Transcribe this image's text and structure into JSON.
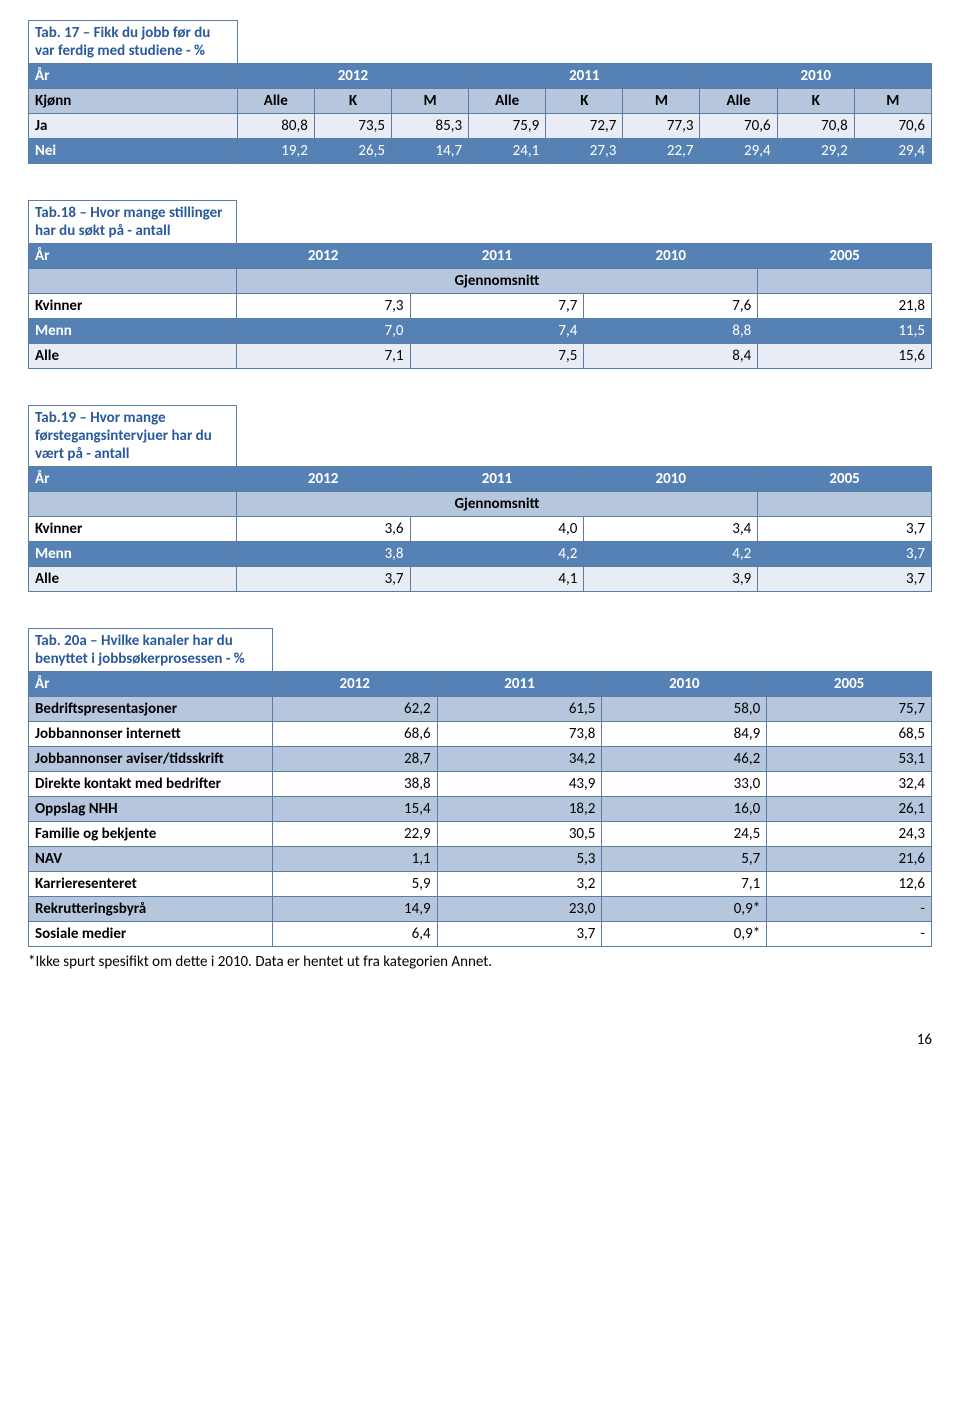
{
  "t17": {
    "title": "Tab. 17 – Fikk du jobb før du var ferdig med studiene - %",
    "year_label": "År",
    "years": [
      "2012",
      "2011",
      "2010"
    ],
    "sub_label": "Kjønn",
    "sub_cols": [
      "Alle",
      "K",
      "M",
      "Alle",
      "K",
      "M",
      "Alle",
      "K",
      "M"
    ],
    "rows": [
      {
        "label": "Ja",
        "cells": [
          "80,8",
          "73,5",
          "85,3",
          "75,9",
          "72,7",
          "77,3",
          "70,6",
          "70,8",
          "70,6"
        ],
        "cls": "row-light"
      },
      {
        "label": "Nei",
        "cells": [
          "19,2",
          "26,5",
          "14,7",
          "24,1",
          "27,3",
          "22,7",
          "29,4",
          "29,2",
          "29,4"
        ],
        "cls": "row-blue-dark"
      }
    ]
  },
  "t18": {
    "title": "Tab.18 – Hvor mange stillinger har du søkt på - antall",
    "year_label": "År",
    "years": [
      "2012",
      "2011",
      "2010",
      "2005"
    ],
    "mid_label": "Gjennomsnitt",
    "rows": [
      {
        "label": "Kvinner",
        "cells": [
          "7,3",
          "7,7",
          "7,6",
          "21,8"
        ],
        "cls": "row-white"
      },
      {
        "label": "Menn",
        "cells": [
          "7,0",
          "7,4",
          "8,8",
          "11,5"
        ],
        "cls": "row-blue-dark"
      },
      {
        "label": "Alle",
        "cells": [
          "7,1",
          "7,5",
          "8,4",
          "15,6"
        ],
        "cls": "row-light"
      }
    ]
  },
  "t19": {
    "title": "Tab.19 – Hvor mange førstegangsintervjuer har du vært på - antall",
    "year_label": "År",
    "years": [
      "2012",
      "2011",
      "2010",
      "2005"
    ],
    "mid_label": "Gjennomsnitt",
    "rows": [
      {
        "label": "Kvinner",
        "cells": [
          "3,6",
          "4,0",
          "3,4",
          "3,7"
        ],
        "cls": "row-white"
      },
      {
        "label": "Menn",
        "cells": [
          "3,8",
          "4,2",
          "4,2",
          "3,7"
        ],
        "cls": "row-blue-dark"
      },
      {
        "label": "Alle",
        "cells": [
          "3,7",
          "4,1",
          "3,9",
          "3,7"
        ],
        "cls": "row-light"
      }
    ]
  },
  "t20": {
    "title": "Tab. 20a – Hvilke kanaler har du benyttet i jobbsøkerprosessen - %",
    "year_label": "År",
    "years": [
      "2012",
      "2011",
      "2010",
      "2005"
    ],
    "rows": [
      {
        "label": "Bedriftspresentasjoner",
        "cells": [
          "62,2",
          "61,5",
          "58,0",
          "75,7"
        ],
        "cls": "row-blue-med"
      },
      {
        "label": "Jobbannonser internett",
        "cells": [
          "68,6",
          "73,8",
          "84,9",
          "68,5"
        ],
        "cls": "row-white"
      },
      {
        "label": "Jobbannonser aviser/tidsskrift",
        "cells": [
          "28,7",
          "34,2",
          "46,2",
          "53,1"
        ],
        "cls": "row-blue-med"
      },
      {
        "label": "Direkte kontakt med bedrifter",
        "cells": [
          "38,8",
          "43,9",
          "33,0",
          "32,4"
        ],
        "cls": "row-white"
      },
      {
        "label": "Oppslag NHH",
        "cells": [
          "15,4",
          "18,2",
          "16,0",
          "26,1"
        ],
        "cls": "row-blue-med"
      },
      {
        "label": "Familie og bekjente",
        "cells": [
          "22,9",
          "30,5",
          "24,5",
          "24,3"
        ],
        "cls": "row-white"
      },
      {
        "label": "NAV",
        "cells": [
          "1,1",
          "5,3",
          "5,7",
          "21,6"
        ],
        "cls": "row-blue-med"
      },
      {
        "label": "Karrieresenteret",
        "cells": [
          "5,9",
          "3,2",
          "7,1",
          "12,6"
        ],
        "cls": "row-white"
      },
      {
        "label": "Rekrutteringsbyrå",
        "cells": [
          "14,9",
          "23,0",
          "0,9*",
          "-"
        ],
        "cls": "row-blue-med"
      },
      {
        "label": "Sosiale medier",
        "cells": [
          "6,4",
          "3,7",
          "0,9*",
          "-"
        ],
        "cls": "row-white"
      }
    ],
    "footnote": "*Ikke spurt spesifikt om dette i 2010. Data er hentet ut fra kategorien Annet."
  },
  "page_number": "16",
  "colors": {
    "header_bg": "#5681b5",
    "subheader_bg": "#b6c6dd",
    "light_bg": "#e8edf5",
    "border": "#5b7ca3",
    "title_color": "#2a5a9a"
  }
}
